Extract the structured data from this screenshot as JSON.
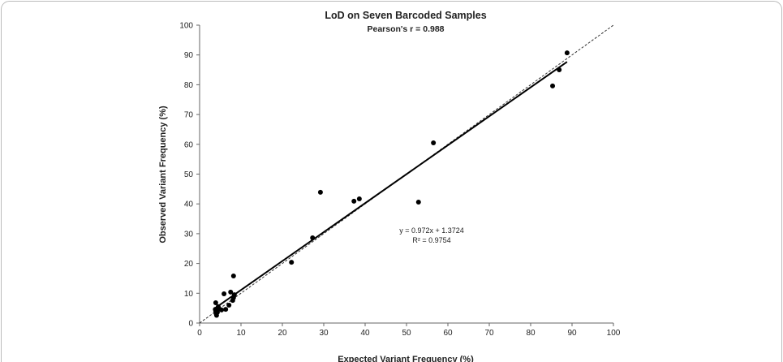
{
  "chart_data": {
    "type": "scatter",
    "title": "LoD on Seven Barcoded Samples",
    "subtitle": "Pearson's r = 0.988",
    "x_label": "Expected Variant Frequency (%)",
    "y_label": "Observed Variant Frequency (%)",
    "x": [
      88.8,
      86.9,
      85.3,
      56.5,
      52.9,
      38.6,
      37.3,
      29.2,
      27.3,
      22.2,
      8.2,
      5.9,
      7.5,
      8.4,
      8.0,
      8.2,
      3.9,
      4.5,
      5.3,
      6.3,
      7.1,
      3.9,
      4.0,
      4.1,
      4.3,
      3.8,
      4.7
    ],
    "y": [
      90.7,
      85.0,
      79.6,
      60.5,
      40.6,
      41.7,
      40.9,
      43.9,
      28.6,
      20.4,
      15.8,
      9.8,
      10.4,
      9.5,
      7.6,
      8.5,
      6.8,
      5.5,
      4.4,
      4.6,
      6.0,
      4.0,
      3.2,
      2.6,
      3.6,
      4.6,
      4.8
    ],
    "color": "#000000",
    "xlim": [
      0,
      100
    ],
    "ylim": [
      0,
      100
    ],
    "xticks": [
      0,
      10,
      20,
      30,
      40,
      50,
      60,
      70,
      80,
      90,
      100
    ],
    "yticks": [
      0,
      10,
      20,
      30,
      40,
      50,
      60,
      70,
      80,
      90,
      100
    ],
    "grid": false,
    "identity_line": true,
    "trendline": {
      "slope": 0.972,
      "intercept": 1.3724,
      "equation": "y = 0.972x + 1.3724",
      "r2": 0.9754,
      "r2_label": "R² = 0.9754"
    }
  }
}
